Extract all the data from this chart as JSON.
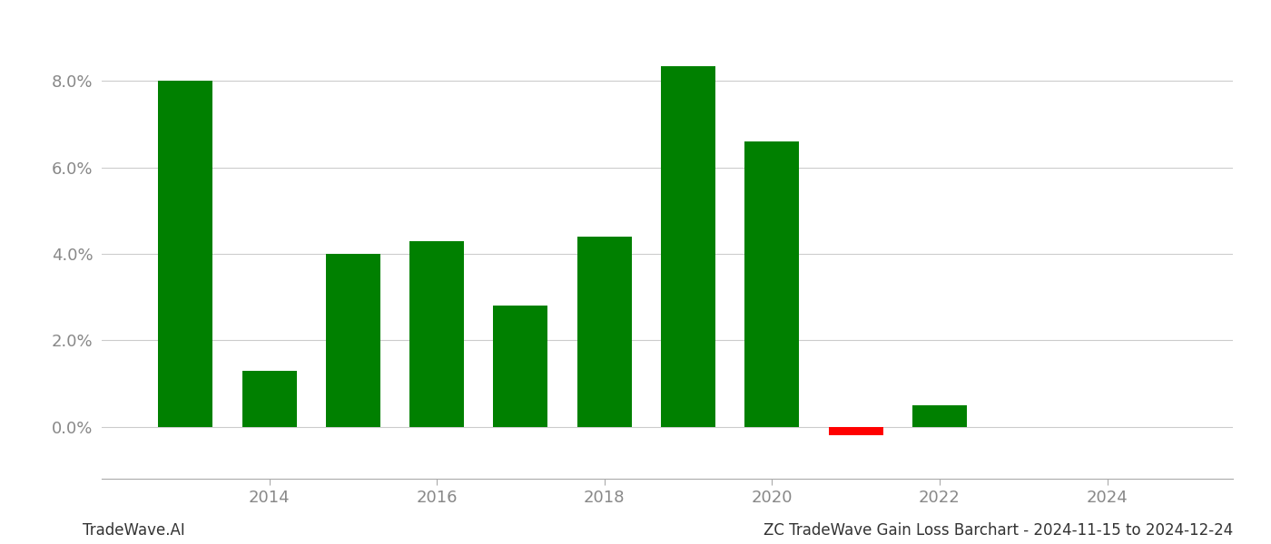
{
  "bar_years": [
    2013,
    2014,
    2015,
    2016,
    2017,
    2018,
    2019,
    2020,
    2021,
    2022
  ],
  "bar_values": [
    0.0801,
    0.013,
    0.04,
    0.043,
    0.028,
    0.044,
    0.0835,
    0.066,
    -0.002,
    0.005
  ],
  "bar_colors": [
    "#008000",
    "#008000",
    "#008000",
    "#008000",
    "#008000",
    "#008000",
    "#008000",
    "#008000",
    "#ff0000",
    "#008000"
  ],
  "xlabel_ticks": [
    2014,
    2016,
    2018,
    2020,
    2022,
    2024
  ],
  "ylim": [
    -0.012,
    0.095
  ],
  "title": "ZC TradeWave Gain Loss Barchart - 2024-11-15 to 2024-12-24",
  "footer_left": "TradeWave.AI",
  "background_color": "#ffffff",
  "grid_color": "#cccccc",
  "bar_width": 0.65,
  "xlim": [
    2012.0,
    2025.5
  ]
}
